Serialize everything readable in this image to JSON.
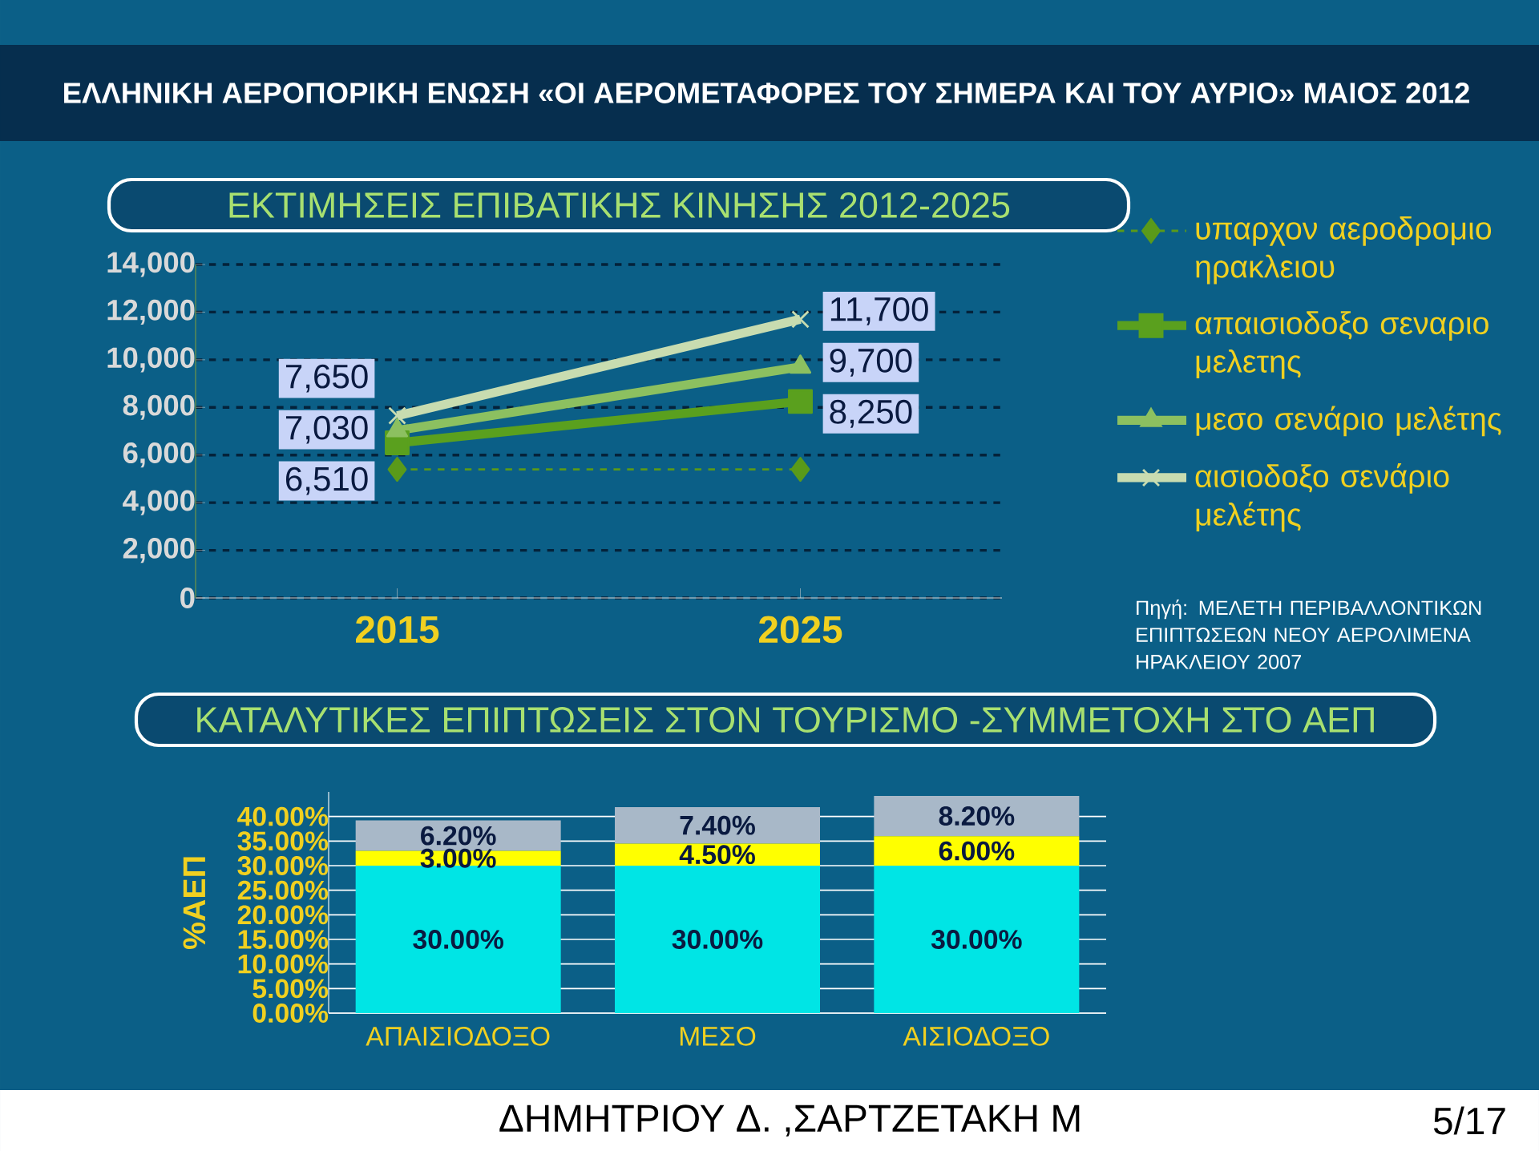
{
  "chart_data": [
    {
      "type": "line",
      "title": "ΕΚΤΙΜΗΣΕΙΣ ΕΠΙΒΑΤΙΚΗΣ ΚΙΝΗΣΗΣ 2012-2025",
      "categories": [
        "2015",
        "2025"
      ],
      "series": [
        {
          "name": "υπαρχον αεροδρομιο ηρακλειου",
          "color": "#5a9a1a",
          "values": [
            5400,
            5400
          ],
          "marker": "diamond",
          "line_style": "dashed",
          "value_labels": [
            null,
            null
          ]
        },
        {
          "name": "απαισιοδοξο σεναριο μελετης",
          "color": "#5aa01e",
          "values": [
            6510,
            8250
          ],
          "marker": "square",
          "line_style": "solid",
          "value_labels": [
            "6,510",
            "8,250"
          ]
        },
        {
          "name": "μεσο σενάριο μελέτης",
          "color": "#8cc060",
          "values": [
            7030,
            9700
          ],
          "marker": "triangle",
          "line_style": "solid",
          "value_labels": [
            "7,030",
            "9,700"
          ]
        },
        {
          "name": "αισιοδοξο σενάριο μελέτης",
          "color": "#c8dcb0",
          "values": [
            7650,
            11700
          ],
          "marker": "cross",
          "line_style": "solid",
          "value_labels": [
            "7,650",
            "11,700"
          ]
        }
      ],
      "ylim": [
        0,
        14000
      ],
      "yticks": [
        {
          "value": 0,
          "label": "0"
        },
        {
          "value": 2000,
          "label": "2,000"
        },
        {
          "value": 4000,
          "label": "4,000"
        },
        {
          "value": 6000,
          "label": "6,000"
        },
        {
          "value": 8000,
          "label": "8,000"
        },
        {
          "value": 10000,
          "label": "10,000"
        },
        {
          "value": 12000,
          "label": "12,000"
        },
        {
          "value": 14000,
          "label": "14,000"
        }
      ],
      "grid": "y",
      "legend": "right",
      "annotations": [
        "ΕΛΛΗΝΙΚΗ ΑΕΡΟΠΟΡΙΚΗ ΕΝΩΣΗ «ΟΙ ΑΕΡΟΜΕΤΑΦΟΡΕΣ ΤΟΥ ΣΗΜΕΡΑ ΚΑΙ ΤΟΥ ΑΥΡΙΟ» ΜΑΙΟΣ 2012",
        "Πηγή: ΜΕΛΕΤΗ ΠΕΡΙΒΑΛΛΟΝΤΙΚΩΝ ΕΠΙΠΤΩΣΕΩΝ ΝΕΟΥ ΑΕΡΟΛΙΜΕΝΑ ΗΡΑΚΛΕΙΟΥ 2007"
      ]
    },
    {
      "type": "bar",
      "stacked": true,
      "title": "ΚΑΤΑΛΥΤΙΚΕΣ ΕΠΙΠΤΩΣΕΙΣ ΣΤΟΝ ΤΟΥΡΙΣΜΟ -ΣΥΜΜΕΤΟΧΗ ΣΤΟ ΑΕΠ",
      "ylabel": "%ΑΕΠ",
      "categories": [
        "ΑΠΑΙΣΙΟΔΟΞΟ",
        "ΜΕΣΟ",
        "ΑΙΣΙΟΔΟΞΟ"
      ],
      "series": [
        {
          "color": "#00e5e5",
          "values": [
            30,
            30,
            30
          ],
          "value_labels": [
            "30.00%",
            "30.00%",
            "30.00%"
          ]
        },
        {
          "color": "#ffff00",
          "values": [
            3,
            4.5,
            6
          ],
          "value_labels": [
            "3.00%",
            "4.50%",
            "6.00%"
          ]
        },
        {
          "color": "#a8b8c8",
          "values": [
            6.2,
            7.4,
            8.2
          ],
          "value_labels": [
            "6.20%",
            "7.40%",
            "8.20%"
          ]
        }
      ],
      "ylim": [
        0,
        45
      ],
      "yticks": [
        {
          "value": 0,
          "label": "0.00%"
        },
        {
          "value": 5,
          "label": "5.00%"
        },
        {
          "value": 10,
          "label": "10.00%"
        },
        {
          "value": 15,
          "label": "15.00%"
        },
        {
          "value": 20,
          "label": "20.00%"
        },
        {
          "value": 25,
          "label": "25.00%"
        },
        {
          "value": 30,
          "label": "30.00%"
        },
        {
          "value": 35,
          "label": "35.00%"
        },
        {
          "value": 40,
          "label": "40.00%"
        }
      ],
      "grid": "y",
      "annotations": [
        "ΔΗΜΗΤΡΙΟΥ Δ. ,ΣΑΡΤΖΕΤΑΚΗ Μ",
        "5/17"
      ]
    }
  ]
}
